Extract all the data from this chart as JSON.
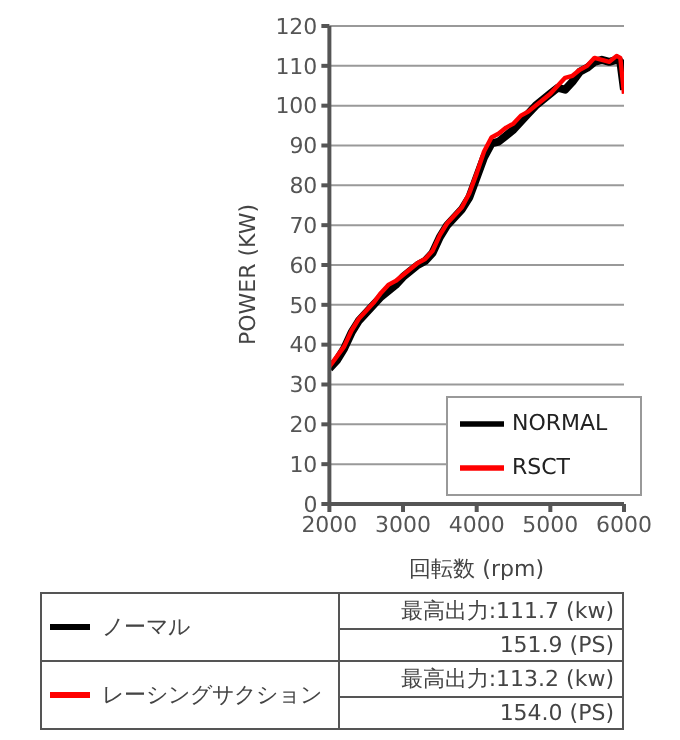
{
  "chart_data": {
    "type": "line",
    "xlabel": "回転数 (rpm)",
    "ylabel": "POWER (KW)",
    "x": [
      2000,
      2100,
      2200,
      2300,
      2400,
      2500,
      2600,
      2700,
      2800,
      2900,
      3000,
      3100,
      3200,
      3300,
      3400,
      3500,
      3600,
      3700,
      3800,
      3900,
      4000,
      4100,
      4200,
      4300,
      4400,
      4500,
      4600,
      4700,
      4800,
      4900,
      5000,
      5100,
      5200,
      5300,
      5400,
      5500,
      5600,
      5700,
      5800,
      5900,
      5950,
      6000
    ],
    "series": [
      {
        "name": "NORMAL",
        "color": "#000000",
        "values": [
          34,
          36,
          39,
          43,
          46,
          48,
          50,
          52,
          53.5,
          55,
          57,
          58.5,
          60,
          61,
          63,
          67,
          70,
          72,
          74,
          77,
          82,
          87,
          90.5,
          91,
          92.5,
          94,
          96,
          98,
          100,
          101.5,
          103,
          104.5,
          104,
          106,
          108.5,
          109.5,
          111,
          111.5,
          111,
          111.5,
          111,
          104
        ]
      },
      {
        "name": "RSCT",
        "color": "#ff0000",
        "values": [
          34.5,
          37,
          39.5,
          43.5,
          46.5,
          48.5,
          50.5,
          53,
          55,
          56,
          57.5,
          59,
          60.5,
          61.5,
          63.5,
          67.5,
          70.5,
          72.5,
          74.5,
          78,
          83,
          88.5,
          92,
          93,
          94.5,
          95.5,
          97.5,
          98.5,
          100,
          101.5,
          103,
          105,
          107,
          107.5,
          109,
          110,
          112,
          111.5,
          111,
          112.5,
          112,
          103
        ]
      }
    ],
    "xlim": [
      2000,
      6000
    ],
    "xticks": [
      2000,
      3000,
      4000,
      5000,
      6000
    ],
    "ylim": [
      0,
      120
    ],
    "yticks": [
      0,
      10,
      20,
      30,
      40,
      50,
      60,
      70,
      80,
      90,
      100,
      110,
      120
    ],
    "grid": "y",
    "legend": "bottom right",
    "marker": "none",
    "line_style": "solid",
    "annotations": [
      "ノーマル",
      "最高出力:111.7 (kw)",
      "151.9 (PS)",
      "レーシングサクション",
      "最高出力:113.2 (kw)",
      "154.0 (PS)"
    ]
  }
}
